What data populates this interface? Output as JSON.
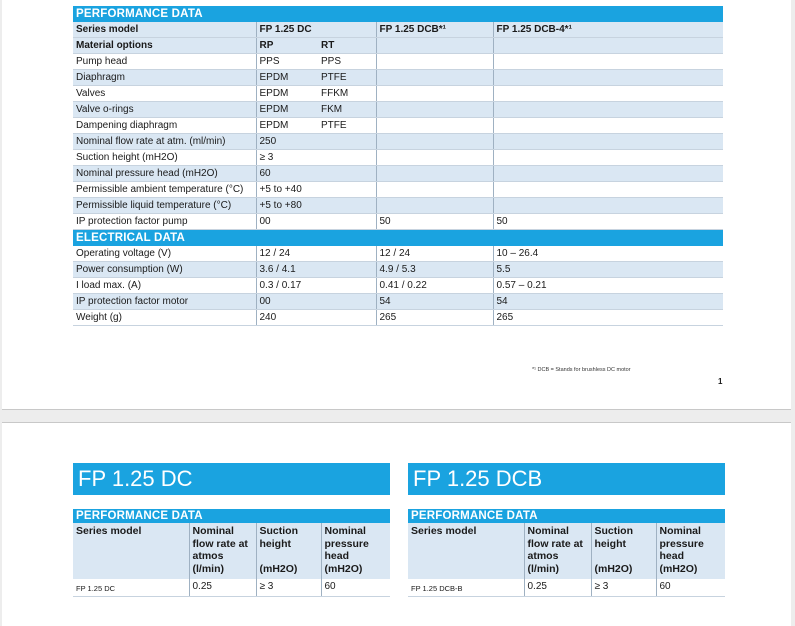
{
  "page1": {
    "section_performance": "PERFORMANCE DATA",
    "section_electrical": "ELECTRICAL DATA",
    "header_row": {
      "label": "Series model",
      "col_dc": "FP 1.25 DC",
      "col_dcb": "FP 1.25 DCB*¹",
      "col_dcb4": "FP 1.25 DCB-4*¹"
    },
    "material_row": {
      "label": "Material options",
      "rp": "RP",
      "rt": "RT"
    },
    "rows": [
      {
        "label": "Pump head",
        "rp": "PPS",
        "rt": "PPS",
        "dcb": "",
        "dcb4": ""
      },
      {
        "label": "Diaphragm",
        "rp": "EPDM",
        "rt": "PTFE",
        "dcb": "",
        "dcb4": ""
      },
      {
        "label": "Valves",
        "rp": "EPDM",
        "rt": "FFKM",
        "dcb": "",
        "dcb4": ""
      },
      {
        "label": "Valve o-rings",
        "rp": "EPDM",
        "rt": "FKM",
        "dcb": "",
        "dcb4": ""
      },
      {
        "label": "Dampening diaphragm",
        "rp": "EPDM",
        "rt": "PTFE",
        "dcb": "",
        "dcb4": ""
      },
      {
        "label": "Nominal flow rate at atm. (ml/min)",
        "rp": "250",
        "rt": "",
        "dcb": "",
        "dcb4": ""
      },
      {
        "label": "Suction height (mH2O)",
        "rp": "≥ 3",
        "rt": "",
        "dcb": "",
        "dcb4": ""
      },
      {
        "label": "Nominal pressure head (mH2O)",
        "rp": "60",
        "rt": "",
        "dcb": "",
        "dcb4": ""
      },
      {
        "label": "Permissible ambient temperature (°C)",
        "rp": "+5 to +40",
        "rt": "",
        "dcb": "",
        "dcb4": ""
      },
      {
        "label": "Permissible liquid temperature (°C)",
        "rp": "+5 to +80",
        "rt": "",
        "dcb": "",
        "dcb4": ""
      },
      {
        "label": "IP protection factor pump",
        "rp": "00",
        "rt": "",
        "dcb": "50",
        "dcb4": "50"
      }
    ],
    "electrical_rows": [
      {
        "label": "Operating voltage (V)",
        "dc": "12 / 24",
        "dcb": "12 / 24",
        "dcb4": "10 – 26.4"
      },
      {
        "label": "Power consumption (W)",
        "dc": "3.6 / 4.1",
        "dcb": "4.9 / 5.3",
        "dcb4": "5.5"
      },
      {
        "label": "I load max. (A)",
        "dc": "0.3 / 0.17",
        "dcb": "0.41 / 0.22",
        "dcb4": "0.57 – 0.21"
      },
      {
        "label": "IP protection factor motor",
        "dc": "00",
        "dcb": "54",
        "dcb4": "54"
      },
      {
        "label": "Weight (g)",
        "dc": "240",
        "dcb": "265",
        "dcb4": "265"
      }
    ],
    "footnote": "*¹ DCB = Stands for brushless DC motor",
    "page_number": "1"
  },
  "page2": {
    "panels": [
      {
        "title": "FP 1.25 DC",
        "section": "PERFORMANCE DATA",
        "headers": [
          "Series model",
          "Nominal flow rate at atmos (l/min)",
          "Suction height",
          "Nominal pressure head (mH2O)"
        ],
        "suction_unit": "(mH2O)",
        "values": [
          "FP 1.25 DC",
          "0.25",
          "≥ 3",
          "60"
        ]
      },
      {
        "title": "FP 1.25 DCB",
        "section": "PERFORMANCE DATA",
        "headers": [
          "Series model",
          "Nominal flow rate at atmos (l/min)",
          "Suction height",
          "Nominal pressure head (mH2O)"
        ],
        "suction_unit": "(mH2O)",
        "values": [
          "FP 1.25 DCB-B",
          "0.25",
          "≥ 3",
          "60"
        ]
      }
    ]
  },
  "colors": {
    "header_blue": "#1aa3e0",
    "shade_row": "#dae7f3",
    "grid_line": "#c7d3df"
  }
}
